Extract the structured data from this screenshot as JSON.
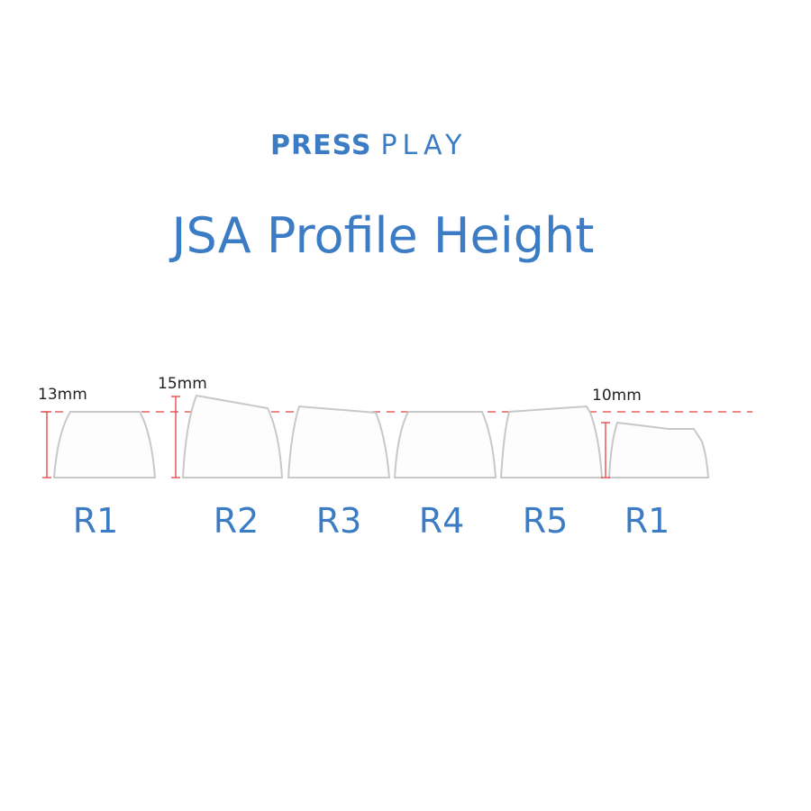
{
  "brand": {
    "bold": "PRESS",
    "light": "PLAY"
  },
  "title": "JSA Profile Height",
  "colors": {
    "accent": "#3b7cc4",
    "guide": "#e04040",
    "keycap_outline": "#c8c8c8"
  },
  "measurements": {
    "r1_height": "13mm",
    "r2_height": "15mm",
    "r1_low_height": "10mm"
  },
  "rows": [
    "R1",
    "R2",
    "R3",
    "R4",
    "R5",
    "R1"
  ]
}
